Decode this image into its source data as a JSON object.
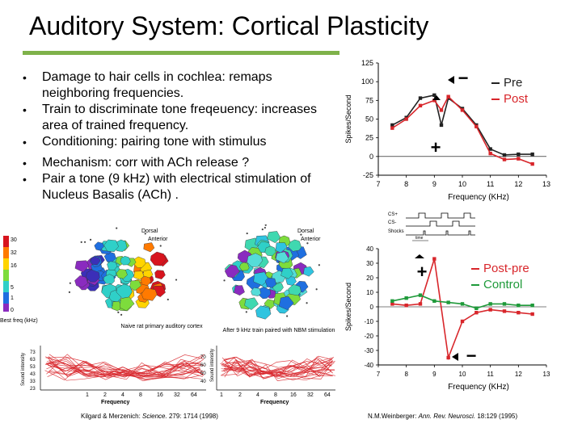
{
  "slide": {
    "title": "Auditory System: Cortical Plasticity",
    "bullets": [
      {
        "bullet": "•",
        "text": "Damage to hair cells in cochlea: remaps neighboring frequencies."
      },
      {
        "bullet": "•",
        "text": "Train to discriminate tone freqeuency: increases area of trained frequency."
      },
      {
        "bullet": "•",
        "text": "Conditioning: pairing tone with stimulus"
      },
      {
        "bullet": "•",
        "text": "Mechanism: corr with ACh release ?"
      },
      {
        "bullet": "•",
        "text": "Pair a tone (9 kHz) with electrical stimulation of Nucleus Basalis (ACh) ."
      }
    ]
  },
  "maps": {
    "scale_label": "Best freq (kHz)",
    "scale_ticks": [
      "30",
      "32",
      "16",
      "5",
      "1",
      "0"
    ],
    "dorsal_label": "Dorsal",
    "anterior_label": "Anterior",
    "left_caption": "Naive rat primary auditory cortex",
    "right_caption": "After 9 kHz train paired with NBM stimulation",
    "left_colors": [
      "#d7141e",
      "#ff7a00",
      "#ffd400",
      "#7ddc3c",
      "#2fd0c8",
      "#1f6fe0",
      "#3b2fb8",
      "#8a2bbf"
    ],
    "right_colors": [
      "#2fd0c8",
      "#3fd8b0",
      "#55dcd8",
      "#2fc4e0",
      "#7ddc3c",
      "#1f6fe0",
      "#8a2bbf"
    ]
  },
  "tuning": {
    "ylabel": "Sound intensity",
    "xlabel": "Frequency",
    "left_yticks": [
      "73",
      "63",
      "53",
      "43",
      "33",
      "23"
    ],
    "right_yticks": [
      "70",
      "60",
      "50",
      "40"
    ],
    "left_xticks": [
      "1",
      "2",
      "4",
      "8",
      "16",
      "32",
      "64"
    ],
    "right_xticks": [
      "1",
      "2",
      "4",
      "8",
      "16",
      "32",
      "64"
    ]
  },
  "citations": {
    "left_authors": "Kilgard & Merzenich:",
    "left_journal": "Science.",
    "left_ref": "279: 1714 (1998)",
    "right_authors": "N.M.Weinberger:",
    "right_journal": "Ann. Rev. Neurosci.",
    "right_ref": "18:129 (1995)"
  },
  "chart_data": [
    {
      "type": "line",
      "title": "",
      "xlabel": "Frequency (KHz)",
      "ylabel": "Spikes/Second",
      "xlim": [
        7,
        13
      ],
      "ylim": [
        -25,
        125
      ],
      "xticks": [
        7,
        8,
        9,
        10,
        11,
        12,
        13
      ],
      "yticks": [
        -25,
        0,
        25,
        50,
        75,
        100,
        125
      ],
      "legend_position": "top-right",
      "annotations": [
        "−",
        "+"
      ],
      "series": [
        {
          "name": "Pre",
          "color": "#222222",
          "x": [
            7.5,
            8,
            8.5,
            9,
            9.25,
            9.5,
            10,
            10.5,
            11,
            11.5,
            12,
            12.5
          ],
          "y": [
            42,
            52,
            78,
            82,
            42,
            78,
            64,
            42,
            10,
            2,
            3,
            3
          ]
        },
        {
          "name": "Post",
          "color": "#d8262b",
          "x": [
            7.5,
            8,
            8.5,
            9,
            9.25,
            9.5,
            10,
            10.5,
            11,
            11.5,
            12,
            12.5
          ],
          "y": [
            38,
            50,
            68,
            75,
            62,
            80,
            62,
            40,
            4,
            -4,
            -3,
            -10
          ]
        }
      ]
    },
    {
      "type": "line",
      "title": "",
      "xlabel": "Frequency (KHz)",
      "ylabel": "Spikes/Second",
      "xlim": [
        7,
        13
      ],
      "ylim": [
        -40,
        40
      ],
      "xticks": [
        7,
        8,
        9,
        10,
        11,
        12,
        13
      ],
      "yticks": [
        -40,
        -30,
        -20,
        -10,
        0,
        10,
        20,
        30,
        40
      ],
      "legend_position": "top-right",
      "annotations": [
        "+",
        "−"
      ],
      "series": [
        {
          "name": "Post-pre",
          "color": "#d8262b",
          "x": [
            7.5,
            8,
            8.5,
            9,
            9.5,
            10,
            10.5,
            11,
            11.5,
            12,
            12.5
          ],
          "y": [
            2,
            1,
            2,
            33,
            -35,
            -10,
            -4,
            -2,
            -3,
            -4,
            -5
          ]
        },
        {
          "name": "Control",
          "color": "#1f9a3a",
          "x": [
            7.5,
            8,
            8.5,
            9,
            9.5,
            10,
            10.5,
            11,
            11.5,
            12,
            12.5
          ],
          "y": [
            4,
            6,
            8,
            4,
            3,
            2,
            -1,
            2,
            2,
            1,
            1
          ]
        }
      ]
    }
  ],
  "protocol": {
    "rows": [
      "CS+",
      "CS-",
      "Shocks"
    ],
    "time_label": "time"
  }
}
